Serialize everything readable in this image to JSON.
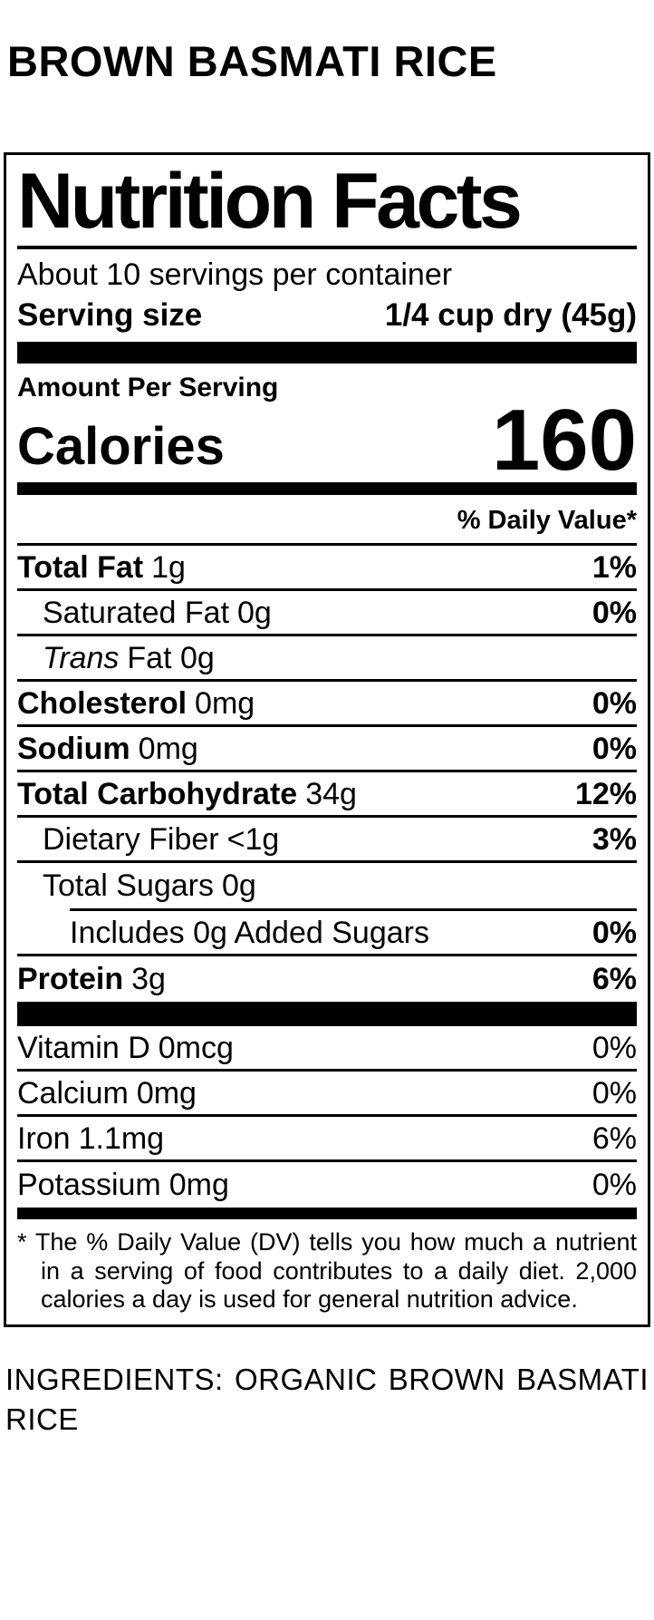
{
  "page": {
    "background_color": "#ffffff",
    "text_color": "#000000"
  },
  "product": {
    "title": "BROWN BASMATI RICE"
  },
  "nutrition_label": {
    "title": "Nutrition Facts",
    "servings_per_container": "About 10 servings per container",
    "serving_size": {
      "label": "Serving size",
      "value": "1/4 cup dry (45g)"
    },
    "amount_per_serving": "Amount Per Serving",
    "calories": {
      "label": "Calories",
      "value": "160"
    },
    "daily_value_header": "% Daily Value*",
    "nutrients": [
      {
        "name": "Total Fat",
        "amount": "1g",
        "dv": "1%"
      },
      {
        "name": "Saturated Fat",
        "amount": "0g",
        "dv": "0%"
      },
      {
        "name": "Trans",
        "amount": "Fat 0g",
        "dv": ""
      },
      {
        "name": "Cholesterol",
        "amount": "0mg",
        "dv": "0%"
      },
      {
        "name": "Sodium",
        "amount": "0mg",
        "dv": "0%"
      },
      {
        "name": "Total Carbohydrate",
        "amount": "34g",
        "dv": "12%"
      },
      {
        "name": "Dietary Fiber",
        "amount": "<1g",
        "dv": "3%"
      },
      {
        "name": "Total Sugars",
        "amount": "0g",
        "dv": ""
      },
      {
        "name": "Includes 0g Added Sugars",
        "amount": "",
        "dv": "0%"
      },
      {
        "name": "Protein",
        "amount": "3g",
        "dv": "6%"
      }
    ],
    "micronutrients": [
      {
        "name": "Vitamin D",
        "amount": "0mcg",
        "dv": "0%"
      },
      {
        "name": "Calcium",
        "amount": "0mg",
        "dv": "0%"
      },
      {
        "name": "Iron",
        "amount": "1.1mg",
        "dv": "6%"
      },
      {
        "name": "Potassium",
        "amount": "0mg",
        "dv": "0%"
      }
    ],
    "footnote": "* The % Daily Value (DV) tells you how much a nutrient in a serving of food contributes to a daily diet. 2,000 calories a day is used for general nutrition advice."
  },
  "ingredients": {
    "text": "INGREDIENTS: ORGANIC BROWN BASMATI RICE"
  }
}
